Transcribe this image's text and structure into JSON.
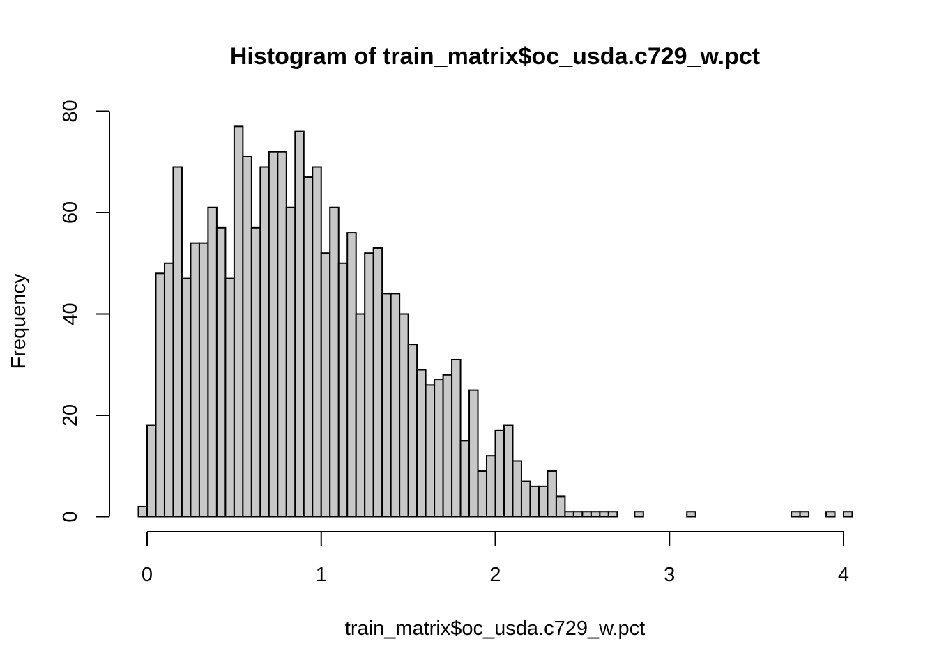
{
  "chart_data": {
    "type": "bar",
    "title": "Histogram of train_matrix$oc_usda.c729_w.pct",
    "xlabel": "train_matrix$oc_usda.c729_w.pct",
    "ylabel": "Frequency",
    "bin_width": 0.05,
    "bin_start": -0.05,
    "xlim": [
      0,
      4
    ],
    "ylim": [
      0,
      80
    ],
    "x_ticks": [
      0,
      1,
      2,
      3,
      4
    ],
    "y_ticks": [
      0,
      20,
      40,
      60,
      80
    ],
    "bar_color": "#c8c8c8",
    "values": [
      2,
      18,
      48,
      50,
      69,
      47,
      54,
      54,
      61,
      57,
      47,
      77,
      71,
      57,
      69,
      72,
      72,
      61,
      76,
      67,
      69,
      52,
      61,
      50,
      56,
      40,
      52,
      53,
      44,
      44,
      40,
      34,
      29,
      26,
      27,
      28,
      31,
      15,
      25,
      9,
      12,
      17,
      18,
      11,
      7,
      6,
      6,
      9,
      4,
      1,
      1,
      1,
      1,
      1,
      1,
      0,
      0,
      1,
      0,
      0,
      0,
      0,
      0,
      1,
      0,
      0,
      0,
      0,
      0,
      0,
      0,
      0,
      0,
      0,
      0,
      1,
      1,
      0,
      0,
      1,
      0,
      1
    ]
  }
}
